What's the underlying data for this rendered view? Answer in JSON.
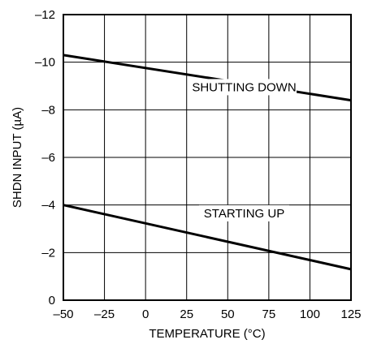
{
  "chart_data": {
    "type": "line",
    "title": "",
    "xlabel": "TEMPERATURE (°C)",
    "ylabel": "SHDN INPUT (µA)",
    "xlim": [
      -50,
      125
    ],
    "ylim": [
      0,
      -12
    ],
    "x_ticks": [
      -50,
      -25,
      0,
      25,
      50,
      75,
      100,
      125
    ],
    "x_tick_labels": [
      "–50",
      "–25",
      "0",
      "25",
      "50",
      "75",
      "100",
      "125"
    ],
    "y_ticks": [
      0,
      -2,
      -4,
      -6,
      -8,
      -10,
      -12
    ],
    "y_tick_labels": [
      "0",
      "–2",
      "–4",
      "–6",
      "–8",
      "–10",
      "–12"
    ],
    "grid": true,
    "series": [
      {
        "name": "SHUTTING DOWN",
        "x": [
          -50,
          125
        ],
        "y": [
          -10.3,
          -8.4
        ]
      },
      {
        "name": "STARTING UP",
        "x": [
          -50,
          125
        ],
        "y": [
          -4.0,
          -1.3
        ]
      }
    ],
    "annotations": [
      {
        "text": "SHUTTING DOWN",
        "x": 60,
        "y": -8.85
      },
      {
        "text": "STARTING UP",
        "x": 60,
        "y": -3.55
      }
    ]
  }
}
